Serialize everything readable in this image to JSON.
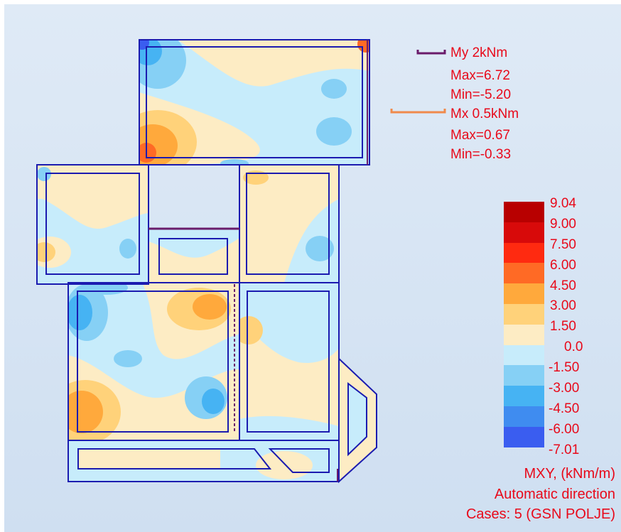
{
  "legend_moments": {
    "my_label": "My  2kNm",
    "my_max": "Max=6.72",
    "my_min": "Min=-5.20",
    "mx_label": "Mx  0.5kNm",
    "mx_max": "Max=0.67",
    "mx_min": "Min=-0.33",
    "my_color": "#6a1b6a",
    "mx_color": "#f08a4b"
  },
  "color_scale": [
    {
      "label": "9.04",
      "color": "#b80000"
    },
    {
      "label": "9.00",
      "color": "#d80a0a"
    },
    {
      "label": "7.50",
      "color": "#ff2a10"
    },
    {
      "label": "6.00",
      "color": "#ff6a25"
    },
    {
      "label": "4.50",
      "color": "#ffa93c"
    },
    {
      "label": "3.00",
      "color": "#ffd27a"
    },
    {
      "label": "1.50",
      "color": "#fdecc4"
    },
    {
      "label": "0.0",
      "color": "#c7ecfb"
    },
    {
      "label": "-1.50",
      "color": "#86d0f5"
    },
    {
      "label": "-3.00",
      "color": "#46b3f3"
    },
    {
      "label": "-4.50",
      "color": "#3f8cf0"
    },
    {
      "label": "-6.00",
      "color": "#3a5df0"
    },
    {
      "label": "-7.01",
      "color": ""
    }
  ],
  "caption": {
    "line1": "MXY, (kNm/m)",
    "line2": "Automatic direction",
    "line3": "Cases: 5 (GSN POLJE)"
  }
}
